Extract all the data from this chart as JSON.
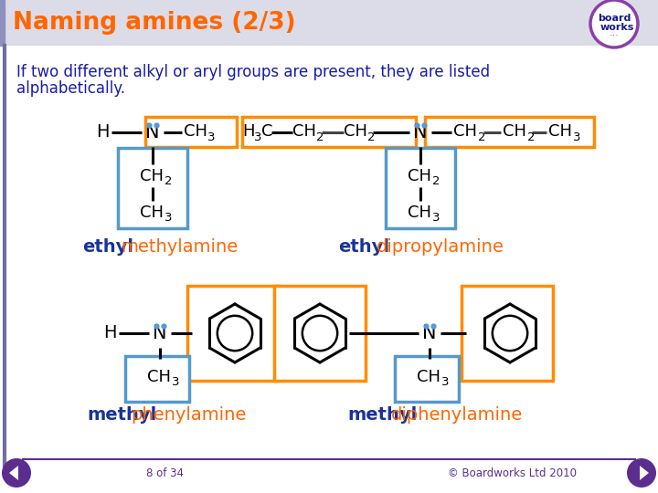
{
  "title": "Naming amines (2/3)",
  "title_color": "#FF6600",
  "header_bg": "#DCDCE8",
  "body_bg": "#FFFFFF",
  "text_color": "#1a1aaa",
  "orange_box": "#FF8C00",
  "blue_box": "#5599CC",
  "footer_line_color": "#5B2D8E",
  "footer_text_color": "#5B2D8E",
  "nav_color": "#5B2D8E",
  "intro_text_line1": "If two different alkyl or aryl groups are present, they are listed",
  "intro_text_line2": "alphabetically.",
  "label1_bold": "ethyl",
  "label1_rest": "methylamine",
  "label2_bold": "ethyl",
  "label2_rest": "dipropylamine",
  "label3_bold": "methyl",
  "label3_rest": "phenylamine",
  "label4_bold": "methyl",
  "label4_rest": "diphenylamine",
  "footer_left": "8 of 34",
  "footer_right": "© Boardworks Ltd 2010"
}
